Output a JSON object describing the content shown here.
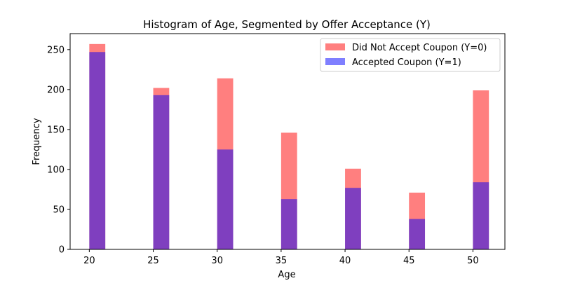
{
  "chart_data": {
    "type": "bar",
    "title": "Histogram of Age, Segmented by Offer Acceptance (Y)",
    "xlabel": "Age",
    "ylabel": "Frequency",
    "xlim": [
      18.5,
      52.5
    ],
    "ylim": [
      0,
      270
    ],
    "xticks": [
      20,
      25,
      30,
      35,
      40,
      45,
      50
    ],
    "yticks": [
      0,
      50,
      100,
      150,
      200,
      250
    ],
    "bins": [
      {
        "x0": 20,
        "x1": 21.25
      },
      {
        "x0": 25,
        "x1": 26.25
      },
      {
        "x0": 30,
        "x1": 31.25
      },
      {
        "x0": 35,
        "x1": 36.25
      },
      {
        "x0": 40,
        "x1": 41.25
      },
      {
        "x0": 45,
        "x1": 46.25
      },
      {
        "x0": 50,
        "x1": 51.25
      }
    ],
    "series": [
      {
        "name": "Did Not Accept Coupon (Y=0)",
        "color": "#ff0000",
        "alpha": 0.5,
        "values": [
          257,
          202,
          214,
          146,
          101,
          71,
          199
        ]
      },
      {
        "name": "Accepted Coupon (Y=1)",
        "color": "#0000ff",
        "alpha": 0.5,
        "values": [
          247,
          193,
          125,
          63,
          77,
          38,
          84
        ]
      }
    ],
    "grid": false,
    "legend_position": "top-right"
  }
}
